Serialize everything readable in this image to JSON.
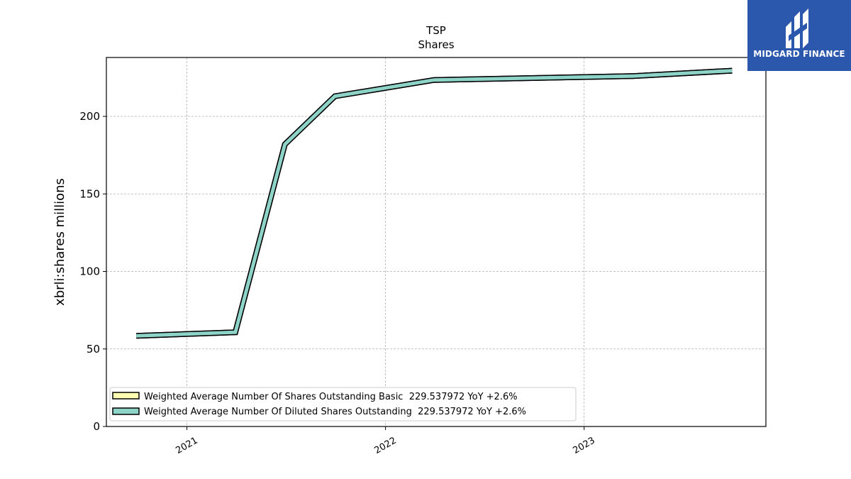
{
  "brand": {
    "name": "MIDGARD FINANCE",
    "bg_color": "#2b57ad"
  },
  "chart_data": {
    "type": "line",
    "title": "TSP",
    "subtitle": "Shares",
    "ylabel": "xbrli:shares millions",
    "xlabel": "",
    "ylim": [
      0,
      238
    ],
    "xlim": [
      "2020-08-06",
      "2023-12-01"
    ],
    "yticks": [
      0,
      50,
      100,
      150,
      200
    ],
    "xticks": [
      {
        "date": "2021-01-01",
        "label": "2021"
      },
      {
        "date": "2022-01-01",
        "label": "2022"
      },
      {
        "date": "2023-01-01",
        "label": "2023"
      }
    ],
    "grid": true,
    "legend_position": "lower-left",
    "x": [
      "2020-09-30",
      "2021-03-31",
      "2021-06-30",
      "2021-09-30",
      "2022-03-31",
      "2023-03-31",
      "2023-09-30"
    ],
    "series": [
      {
        "name": "Weighted Average Number Of Shares Outstanding Basic",
        "legend_label": "Weighted Average Number Of Shares Outstanding Basic  229.537972 YoY +2.6%",
        "color": "#ffffb3",
        "values": [
          58.5,
          60.8,
          182.0,
          213.0,
          223.5,
          226.0,
          229.5
        ]
      },
      {
        "name": "Weighted Average Number Of Diluted Shares Outstanding",
        "legend_label": "Weighted Average Number Of Diluted Shares Outstanding  229.537972 YoY +2.6%",
        "color": "#8dd3c7",
        "values": [
          58.5,
          60.8,
          182.0,
          213.0,
          223.5,
          226.0,
          229.5
        ]
      }
    ]
  }
}
